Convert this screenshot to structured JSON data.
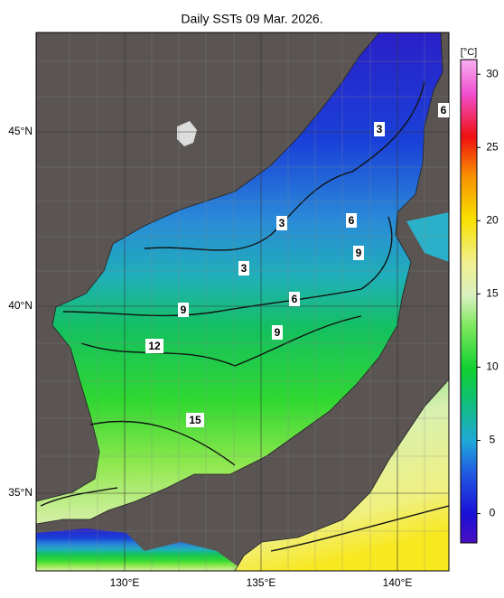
{
  "map": {
    "title": "Daily SSTs 09 Mar. 2026.",
    "colorbar": {
      "unit": "[°C]",
      "lim": [
        -2,
        31
      ],
      "ticks": [
        0,
        5,
        10,
        15,
        20,
        25,
        30
      ]
    },
    "lon_labels": [
      "130°E",
      "135°E",
      "140°E"
    ],
    "lat_labels": [
      "45°N",
      "40°N",
      "35°N"
    ],
    "contour_labels": [
      3,
      3,
      3,
      6,
      6,
      6,
      9,
      9,
      9,
      12,
      15
    ]
  }
}
